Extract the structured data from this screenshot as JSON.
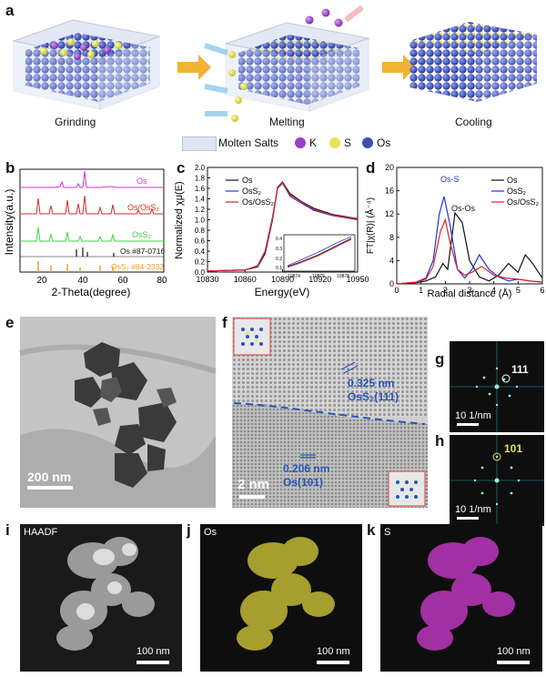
{
  "panels": {
    "a": "a",
    "b": "b",
    "c": "c",
    "d": "d",
    "e": "e",
    "f": "f",
    "g": "g",
    "h": "h",
    "i": "i",
    "j": "j",
    "k": "k"
  },
  "panel_a": {
    "steps": [
      "Grinding",
      "Melting",
      "Cooling"
    ],
    "legend": {
      "molten": "Molten Salts",
      "k": "K",
      "s": "S",
      "os": "Os"
    },
    "colors": {
      "os": "#3a4fb0",
      "s": "#e6e25a",
      "k": "#9b3fc8",
      "arrow": "#f2b233",
      "box": "#c9d6ea"
    }
  },
  "chart_b": {
    "type": "line",
    "title": "",
    "xlabel": "2-Theta(degree)",
    "ylabel": "Intensity(a.u.)",
    "xlim": [
      10,
      80
    ],
    "xticks": [
      "20",
      "40",
      "60",
      "80"
    ],
    "series_labels": [
      "Os",
      "Os/OsS₂",
      "OsS₂",
      "Os #87-0716",
      "OsS₂ #84-2332"
    ],
    "colors": [
      "#d62fd6",
      "#d42a2a",
      "#3fd43f",
      "#111111",
      "#f0a020"
    ]
  },
  "chart_c": {
    "type": "line",
    "xlabel": "Energy(eV)",
    "ylabel": "Normalized χμ(E)",
    "xlim": [
      10830,
      10950
    ],
    "ylim": [
      0.0,
      2.0
    ],
    "xticks": [
      "10830",
      "10860",
      "10890",
      "10920",
      "10950"
    ],
    "yticks": [
      "0.0",
      "0.2",
      "0.4",
      "0.6",
      "0.8",
      "1.0",
      "1.2",
      "1.4",
      "1.6",
      "1.8",
      "2.0"
    ],
    "legend": [
      "Os",
      "OsS₂",
      "Os/OsS₂"
    ],
    "colors": [
      "#111111",
      "#2233dd",
      "#dd2222"
    ],
    "inset": {
      "xticks": [
        "10874",
        "10876",
        "10878"
      ],
      "yticks": [
        "0.1",
        "0.2",
        "0.3",
        "0.4"
      ]
    },
    "series": [
      {
        "name": "Os",
        "x": [
          10830,
          10860,
          10870,
          10876,
          10882,
          10886,
          10890,
          10896,
          10905,
          10915,
          10930,
          10950
        ],
        "y": [
          0.02,
          0.04,
          0.1,
          0.35,
          1.0,
          1.62,
          1.72,
          1.5,
          1.35,
          1.22,
          1.1,
          1.02
        ]
      },
      {
        "name": "OsS₂",
        "x": [
          10830,
          10860,
          10870,
          10876,
          10882,
          10886,
          10890,
          10896,
          10905,
          10915,
          10930,
          10950
        ],
        "y": [
          0.02,
          0.04,
          0.12,
          0.4,
          1.05,
          1.6,
          1.7,
          1.45,
          1.32,
          1.18,
          1.08,
          1.0
        ]
      },
      {
        "name": "Os/OsS₂",
        "x": [
          10830,
          10860,
          10870,
          10876,
          10882,
          10886,
          10890,
          10896,
          10905,
          10915,
          10930,
          10950
        ],
        "y": [
          0.02,
          0.04,
          0.11,
          0.38,
          1.02,
          1.61,
          1.71,
          1.48,
          1.34,
          1.2,
          1.09,
          1.01
        ]
      }
    ]
  },
  "chart_d": {
    "type": "line",
    "xlabel": "Radial distance (Å)",
    "ylabel": "FT|χ(R)| (Å⁻⁴)",
    "xlim": [
      0,
      6
    ],
    "ylim": [
      0,
      20
    ],
    "xticks": [
      "0",
      "1",
      "2",
      "3",
      "4",
      "5",
      "6"
    ],
    "yticks": [
      "0",
      "4",
      "8",
      "12",
      "16",
      "20"
    ],
    "legend": [
      "Os",
      "OsS₂",
      "Os/OsS₂"
    ],
    "colors": [
      "#111111",
      "#2233dd",
      "#dd2222"
    ],
    "annotations": {
      "oss": "Os-S",
      "osos": "Os-Os"
    },
    "series": [
      {
        "name": "Os",
        "x": [
          0,
          0.8,
          1.2,
          1.6,
          1.9,
          2.1,
          2.4,
          2.7,
          3.0,
          3.4,
          3.8,
          4.2,
          4.6,
          5.0,
          5.3,
          5.6,
          6.0
        ],
        "y": [
          0,
          0.2,
          0.5,
          1.2,
          3.5,
          2.5,
          12.2,
          10.5,
          4.0,
          1.2,
          0.5,
          1.5,
          3.5,
          2.0,
          5.0,
          3.5,
          1.0
        ]
      },
      {
        "name": "OsS₂",
        "x": [
          0,
          0.8,
          1.2,
          1.5,
          1.75,
          1.95,
          2.2,
          2.5,
          2.8,
          3.1,
          3.4,
          3.8,
          4.2,
          4.6,
          5.0,
          5.5,
          6.0
        ],
        "y": [
          0,
          0.3,
          1.0,
          4.0,
          12.0,
          15.0,
          10.0,
          2.5,
          1.0,
          2.5,
          5.0,
          2.5,
          1.2,
          0.5,
          0.8,
          0.5,
          0.3
        ]
      },
      {
        "name": "Os/OsS₂",
        "x": [
          0,
          0.8,
          1.2,
          1.5,
          1.8,
          2.0,
          2.2,
          2.5,
          2.8,
          3.1,
          3.5,
          4.0,
          4.5,
          5.0,
          5.5,
          6.0
        ],
        "y": [
          0,
          0.3,
          0.8,
          3.0,
          9.0,
          11.0,
          7.0,
          2.5,
          1.5,
          2.0,
          3.0,
          1.5,
          1.0,
          0.8,
          0.5,
          0.3
        ]
      }
    ]
  },
  "panel_e": {
    "scale": "200 nm"
  },
  "panel_f": {
    "scale": "2 nm",
    "upper_d": "0.325 nm",
    "upper_phase": "OsS₂(111)",
    "lower_d": "0.206 nm",
    "lower_phase": "Os(101)"
  },
  "panel_g": {
    "plane": "111",
    "scale": "10  1/nm"
  },
  "panel_h": {
    "plane": "101",
    "scale": "10  1/nm"
  },
  "panel_i": {
    "label": "HAADF",
    "scale": "100 nm"
  },
  "panel_j": {
    "label": "Os",
    "scale": "100 nm",
    "color": "#d9cf3a"
  },
  "panel_k": {
    "label": "S",
    "scale": "100 nm",
    "color": "#d43cd4"
  }
}
